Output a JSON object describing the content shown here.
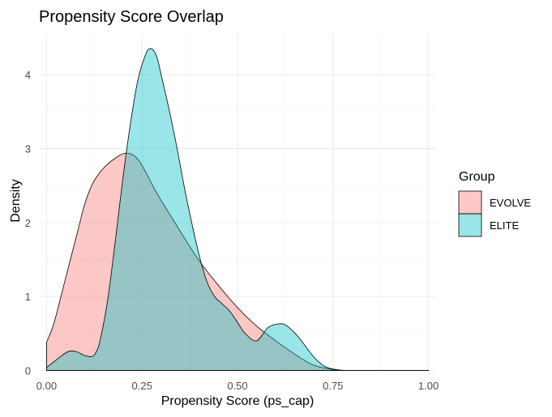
{
  "chart_data": {
    "type": "area",
    "title": "Propensity Score Overlap",
    "xlabel": "Propensity Score (ps_cap)",
    "ylabel": "Density",
    "xlim": [
      -0.02,
      1.02
    ],
    "ylim": [
      -0.05,
      4.55
    ],
    "xticks": [
      0.0,
      0.25,
      0.5,
      0.75,
      1.0
    ],
    "xtick_labels": [
      "0.00",
      "0.25",
      "0.50",
      "0.75",
      "1.00"
    ],
    "yticks": [
      0,
      1,
      2,
      3,
      4
    ],
    "ytick_labels": [
      "0",
      "1",
      "2",
      "3",
      "4"
    ],
    "grid": true,
    "legend": {
      "title": "Group",
      "position": "right"
    },
    "series": [
      {
        "name": "EVOLVE",
        "color": "#F8766D",
        "x": [
          0.0,
          0.02,
          0.05,
          0.08,
          0.1,
          0.12,
          0.14,
          0.16,
          0.18,
          0.2,
          0.22,
          0.24,
          0.26,
          0.28,
          0.3,
          0.33,
          0.36,
          0.4,
          0.45,
          0.5,
          0.55,
          0.6,
          0.65,
          0.68,
          0.7,
          0.72,
          0.75,
          0.78,
          0.8,
          0.85,
          0.9,
          1.0
        ],
        "y": [
          0.38,
          0.65,
          1.25,
          1.85,
          2.25,
          2.52,
          2.68,
          2.79,
          2.87,
          2.93,
          2.93,
          2.85,
          2.68,
          2.48,
          2.3,
          2.05,
          1.8,
          1.48,
          1.15,
          0.85,
          0.6,
          0.4,
          0.22,
          0.12,
          0.07,
          0.04,
          0.01,
          0.0,
          0.0,
          0.0,
          0.0,
          0.0
        ]
      },
      {
        "name": "ELITE",
        "color": "#00BFC4",
        "x": [
          0.0,
          0.02,
          0.04,
          0.06,
          0.08,
          0.1,
          0.12,
          0.13,
          0.14,
          0.16,
          0.18,
          0.2,
          0.22,
          0.24,
          0.26,
          0.27,
          0.28,
          0.29,
          0.3,
          0.32,
          0.34,
          0.36,
          0.38,
          0.4,
          0.42,
          0.44,
          0.46,
          0.48,
          0.5,
          0.52,
          0.55,
          0.58,
          0.61,
          0.63,
          0.66,
          0.7,
          0.73,
          0.76,
          0.78,
          0.8,
          0.85,
          0.9,
          1.0
        ],
        "y": [
          0.04,
          0.12,
          0.2,
          0.26,
          0.25,
          0.2,
          0.19,
          0.25,
          0.4,
          0.95,
          1.75,
          2.6,
          3.35,
          3.95,
          4.28,
          4.35,
          4.33,
          4.22,
          4.0,
          3.55,
          3.05,
          2.5,
          2.0,
          1.55,
          1.2,
          1.0,
          0.9,
          0.8,
          0.65,
          0.5,
          0.4,
          0.58,
          0.63,
          0.6,
          0.45,
          0.18,
          0.05,
          0.01,
          0.0,
          0.0,
          0.0,
          0.0,
          0.0
        ]
      }
    ]
  }
}
